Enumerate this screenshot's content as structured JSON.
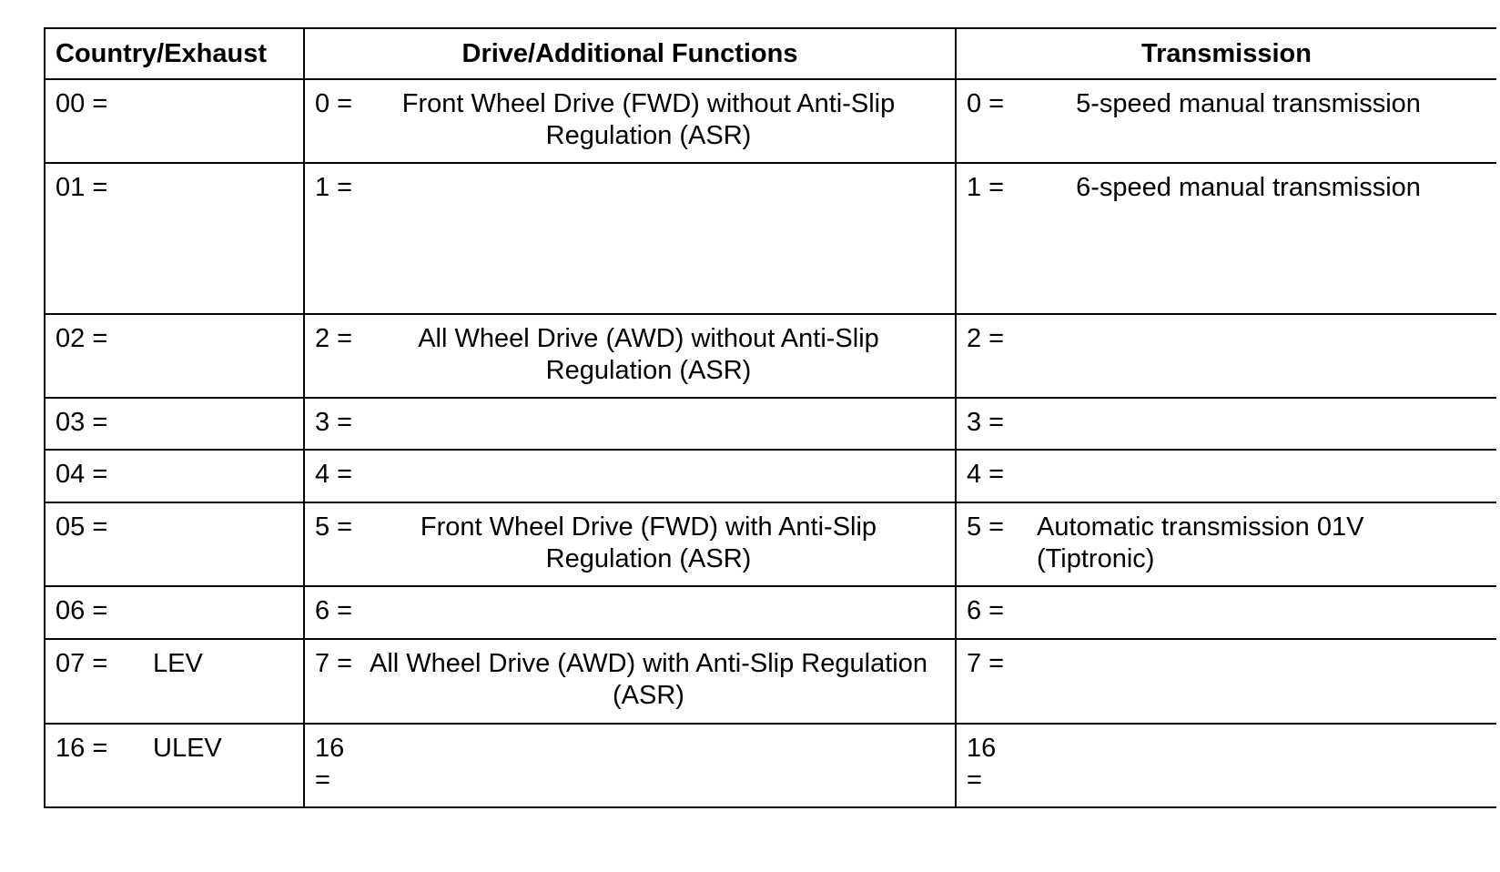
{
  "headers": [
    "Country/Exhaust",
    "Drive/Additional Functions",
    "Transmission"
  ],
  "rows": [
    {
      "country": {
        "code": "00 =",
        "desc": ""
      },
      "drive": {
        "code": "0 =",
        "desc": "Front Wheel Drive (FWD) without Anti-Slip Regulation (ASR)"
      },
      "trans": {
        "code": "0 =",
        "desc": "5-speed manual transmission"
      }
    },
    {
      "country": {
        "code": "01 =",
        "desc": ""
      },
      "drive": {
        "code": "1 =",
        "desc": ""
      },
      "trans": {
        "code": "1 =",
        "desc": "6-speed manual transmission"
      }
    },
    {
      "country": {
        "code": "02 =",
        "desc": ""
      },
      "drive": {
        "code": "2 =",
        "desc": "All Wheel Drive (AWD) without Anti-Slip Regulation (ASR)"
      },
      "trans": {
        "code": "2 =",
        "desc": ""
      }
    },
    {
      "country": {
        "code": "03 =",
        "desc": ""
      },
      "drive": {
        "code": "3 =",
        "desc": ""
      },
      "trans": {
        "code": "3 =",
        "desc": ""
      }
    },
    {
      "country": {
        "code": "04 =",
        "desc": ""
      },
      "drive": {
        "code": "4 =",
        "desc": ""
      },
      "trans": {
        "code": "4 =",
        "desc": ""
      }
    },
    {
      "country": {
        "code": "05 =",
        "desc": ""
      },
      "drive": {
        "code": "5 =",
        "desc": "Front Wheel Drive (FWD) with Anti-Slip Regulation (ASR)"
      },
      "trans": {
        "code": "5 =",
        "desc": "Automatic transmission 01V (Tiptronic)"
      }
    },
    {
      "country": {
        "code": "06 =",
        "desc": ""
      },
      "drive": {
        "code": "6 =",
        "desc": ""
      },
      "trans": {
        "code": "6 =",
        "desc": ""
      }
    },
    {
      "country": {
        "code": "07 =",
        "desc": "LEV"
      },
      "drive": {
        "code": "7 =",
        "desc": "All Wheel Drive (AWD) with Anti-Slip Regulation (ASR)"
      },
      "trans": {
        "code": "7 =",
        "desc": ""
      }
    },
    {
      "country": {
        "code": "16 =",
        "desc": "ULEV"
      },
      "drive": {
        "code": "16 =",
        "desc": ""
      },
      "trans": {
        "code": "16 =",
        "desc": ""
      }
    }
  ]
}
